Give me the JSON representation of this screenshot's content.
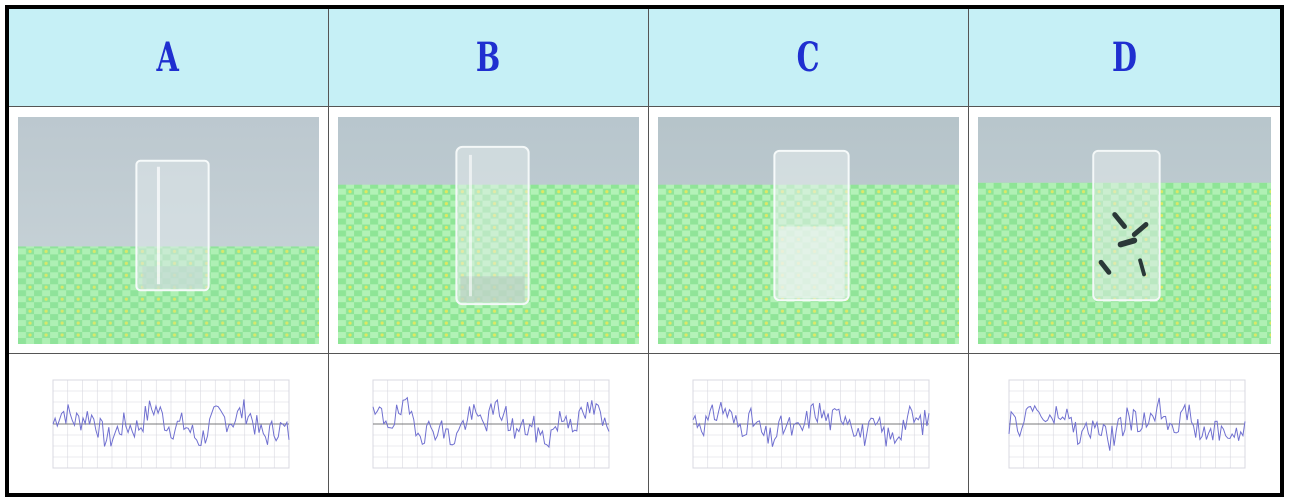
{
  "columns": [
    {
      "label": "A",
      "photo": "glass-on-checkered-tablecloth",
      "graph": "waveform-graph"
    },
    {
      "label": "B",
      "photo": "tall-glass-on-checkered-tablecloth",
      "graph": "waveform-graph"
    },
    {
      "label": "C",
      "photo": "frosted-glass-on-checkered-tablecloth",
      "graph": "waveform-graph"
    },
    {
      "label": "D",
      "photo": "glass-with-dark-marks-on-checkered-tablecloth",
      "graph": "waveform-graph"
    }
  ],
  "colors": {
    "header_bg": "#c6f0f6",
    "header_text": "#1f2fd0",
    "waveform": "#7070d0",
    "graph_grid": "#d8d8e0"
  }
}
